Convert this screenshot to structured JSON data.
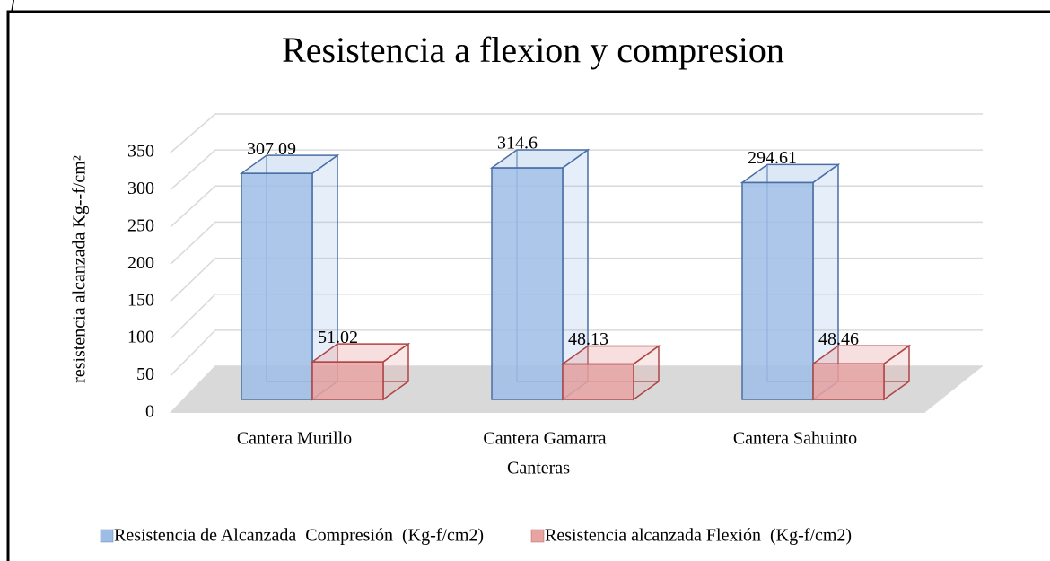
{
  "corner_text": "f",
  "chart_data": {
    "type": "bar3d",
    "title": "Resistencia a flexion y compresion",
    "ylabel": "resistencia alcanzada Kg--f/cm²",
    "xlabel": "Canteras",
    "categories": [
      "Cantera Murillo",
      "Cantera Gamarra",
      "Cantera Sahuinto"
    ],
    "series": [
      {
        "name": "Resistencia de Alcanzada  Compresión  (Kg-f/cm2)",
        "color": "#9dbde6",
        "values": [
          307.09,
          314.6,
          294.61
        ]
      },
      {
        "name": "Resistencia alcanzada Flexión  (Kg-f/cm2)",
        "color": "#e8a3a3",
        "values": [
          51.02,
          48.13,
          48.46
        ]
      }
    ],
    "ylim": [
      0,
      350
    ],
    "yticks": [
      0,
      50,
      100,
      150,
      200,
      250,
      300,
      350
    ],
    "grid": true
  }
}
